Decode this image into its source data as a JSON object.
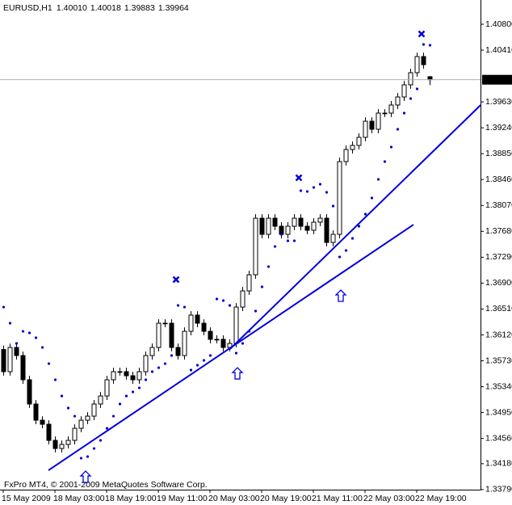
{
  "chart_data": {
    "type": "candlestick",
    "title": "EURUSD,H1",
    "last_labels": [
      "1.40010",
      "1.40018",
      "1.39883",
      "1.39964"
    ],
    "footer": "FxPro MT4, © 2001-2009 MetaQuotes Software Corp.",
    "categories": [
      "15 May 2009",
      null,
      null,
      null,
      null,
      null,
      null,
      null,
      "18 May 03:00",
      null,
      null,
      null,
      null,
      null,
      null,
      null,
      "18 May 19:00",
      null,
      null,
      null,
      null,
      null,
      null,
      null,
      "19 May 11:00",
      null,
      null,
      null,
      null,
      null,
      null,
      null,
      "20 May 03:00",
      null,
      null,
      null,
      null,
      null,
      null,
      null,
      "20 May 19:00",
      null,
      null,
      null,
      null,
      null,
      null,
      null,
      "21 May 11:00",
      null,
      null,
      null,
      null,
      null,
      null,
      null,
      "22 May 03:00",
      null,
      null,
      null,
      null,
      null,
      null,
      null,
      "22 May 19:00",
      null,
      null
    ],
    "open": [
      1.359,
      1.35566,
      1.35931,
      1.35809,
      1.35444,
      1.35079,
      1.34835,
      1.34774,
      1.34531,
      1.34409,
      1.3447,
      1.34531,
      1.34713,
      1.34835,
      1.34896,
      1.35079,
      1.352,
      1.35444,
      1.35566,
      1.35566,
      1.35505,
      1.35444,
      1.35566,
      1.35809,
      1.35931,
      1.36296,
      1.36296,
      1.35931,
      1.35809,
      1.36174,
      1.36418,
      1.36296,
      1.36174,
      1.36053,
      1.36053,
      1.35931,
      1.35992,
      1.36539,
      1.36783,
      1.37026,
      1.37878,
      1.37635,
      1.37878,
      1.37757,
      1.37635,
      1.37757,
      1.37878,
      1.37757,
      1.37696,
      1.37818,
      1.37878,
      1.37513,
      1.37635,
      1.38731,
      1.38913,
      1.38974,
      1.39096,
      1.39339,
      1.39218,
      1.39461,
      1.39461,
      1.39583,
      1.39704,
      1.39887,
      1.4007,
      1.40313,
      1.4001
    ],
    "high": [
      1.3596,
      1.35991,
      1.35991,
      1.35869,
      1.35504,
      1.35139,
      1.34895,
      1.34834,
      1.34591,
      1.3453,
      1.34591,
      1.34773,
      1.34895,
      1.34956,
      1.35139,
      1.3526,
      1.35504,
      1.35626,
      1.35626,
      1.35626,
      1.35565,
      1.35626,
      1.35869,
      1.35991,
      1.36356,
      1.36356,
      1.36356,
      1.35991,
      1.36234,
      1.36478,
      1.36478,
      1.36356,
      1.36234,
      1.36113,
      1.36113,
      1.36052,
      1.36599,
      1.36843,
      1.37086,
      1.37938,
      1.37938,
      1.37938,
      1.37938,
      1.37817,
      1.37817,
      1.37938,
      1.37938,
      1.37817,
      1.37878,
      1.37938,
      1.37938,
      1.37695,
      1.38791,
      1.38973,
      1.39034,
      1.39156,
      1.39399,
      1.39399,
      1.39521,
      1.39521,
      1.39643,
      1.39764,
      1.39947,
      1.4013,
      1.40373,
      1.40373,
      1.40018
    ],
    "low": [
      1.35506,
      1.35506,
      1.35749,
      1.35384,
      1.35019,
      1.34775,
      1.34714,
      1.34471,
      1.34349,
      1.34349,
      1.3441,
      1.34471,
      1.34653,
      1.34775,
      1.34836,
      1.35019,
      1.3514,
      1.35384,
      1.35506,
      1.35445,
      1.35384,
      1.35384,
      1.35506,
      1.35749,
      1.35871,
      1.36236,
      1.35871,
      1.35749,
      1.35749,
      1.36114,
      1.36236,
      1.36114,
      1.35993,
      1.35993,
      1.35871,
      1.35871,
      1.35932,
      1.36479,
      1.36723,
      1.36966,
      1.37575,
      1.37575,
      1.37697,
      1.37575,
      1.37575,
      1.37697,
      1.37697,
      1.37636,
      1.37636,
      1.37758,
      1.37453,
      1.37453,
      1.37575,
      1.38671,
      1.38853,
      1.38914,
      1.39036,
      1.39158,
      1.39158,
      1.39401,
      1.39401,
      1.39523,
      1.39644,
      1.39827,
      1.4001,
      1.40131,
      1.39883
    ],
    "close": [
      1.35566,
      1.35931,
      1.35809,
      1.35444,
      1.35079,
      1.34835,
      1.34774,
      1.34531,
      1.34409,
      1.3447,
      1.34531,
      1.34713,
      1.34835,
      1.34896,
      1.35079,
      1.352,
      1.35444,
      1.35566,
      1.35566,
      1.35505,
      1.35444,
      1.35566,
      1.35809,
      1.35931,
      1.36296,
      1.36296,
      1.35931,
      1.35809,
      1.36174,
      1.36418,
      1.36296,
      1.36174,
      1.36053,
      1.36053,
      1.35931,
      1.35992,
      1.36539,
      1.36783,
      1.37026,
      1.37878,
      1.37635,
      1.37878,
      1.37757,
      1.37635,
      1.37757,
      1.37878,
      1.37757,
      1.37696,
      1.37818,
      1.37878,
      1.37513,
      1.37635,
      1.38731,
      1.38913,
      1.38974,
      1.39096,
      1.39339,
      1.39218,
      1.39461,
      1.39461,
      1.39583,
      1.39704,
      1.39887,
      1.4007,
      1.40313,
      1.40191,
      1.39964
    ],
    "sar": [
      1.36539,
      1.36296,
      1.35992,
      1.36174,
      1.3615,
      1.36077,
      1.35931,
      1.35687,
      1.35444,
      1.352,
      1.35018,
      1.34896,
      1.34263,
      1.34287,
      1.34409,
      1.34531,
      1.34713,
      1.34896,
      1.35079,
      1.352,
      1.35261,
      1.35322,
      1.35444,
      1.35566,
      1.35626,
      1.35687,
      1.35809,
      1.36564,
      1.36539,
      1.3559,
      1.35663,
      1.35736,
      1.35809,
      1.36661,
      1.36637,
      1.36564,
      1.35846,
      1.35992,
      1.36174,
      1.36479,
      1.36844,
      1.37148,
      1.37452,
      1.37635,
      1.37538,
      1.37538,
      1.38292,
      1.3828,
      1.38341,
      1.3839,
      1.38268,
      1.38061,
      1.37294,
      1.37392,
      1.37574,
      1.37757,
      1.37939,
      1.38183,
      1.38463,
      1.38731,
      1.3895,
      1.39218,
      1.39461,
      1.3968,
      1.39826,
      1.40496,
      1.40483
    ],
    "sar_color": "#0000cc",
    "trendlines": [
      {
        "x": [
          7,
          63.5
        ],
        "y": [
          1.3408,
          1.37781
        ]
      },
      {
        "x": [
          35.1,
          73.9
        ],
        "y": [
          1.35907,
          1.39583
        ]
      }
    ],
    "trend_color": "#0000dd",
    "buy_signals": {
      "x": [
        12.75,
        36.25,
        52.25
      ],
      "y": [
        1.33983,
        1.35541,
        1.3671
      ]
    },
    "sell_signals": {
      "x": [
        26.75,
        45.75,
        64.75
      ],
      "y": [
        1.36953,
        1.38487,
        1.40654
      ]
    },
    "ylim": [
      1.33801,
      1.41165
    ],
    "yticks": [
      {
        "value": 1.408,
        "label": "1.40800"
      },
      {
        "value": 1.4041,
        "label": "1.40410"
      },
      {
        "value": 1.3963,
        "label": "1.39630"
      },
      {
        "value": 1.3924,
        "label": "1.39240"
      },
      {
        "value": 1.3885,
        "label": "1.38850"
      },
      {
        "value": 1.3846,
        "label": "1.38460"
      },
      {
        "value": 1.3807,
        "label": "1.38070"
      },
      {
        "value": 1.3768,
        "label": "1.37680"
      },
      {
        "value": 1.3729,
        "label": "1.37290"
      },
      {
        "value": 1.369,
        "label": "1.36900"
      },
      {
        "value": 1.3651,
        "label": "1.36510"
      },
      {
        "value": 1.3612,
        "label": "1.36120"
      },
      {
        "value": 1.3573,
        "label": "1.35730"
      },
      {
        "value": 1.3534,
        "label": "1.35340"
      },
      {
        "value": 1.3495,
        "label": "1.34950"
      },
      {
        "value": 1.3456,
        "label": "1.34560"
      },
      {
        "value": 1.3418,
        "label": "1.34180"
      },
      {
        "value": 1.3379,
        "label": "1.33790"
      }
    ]
  }
}
